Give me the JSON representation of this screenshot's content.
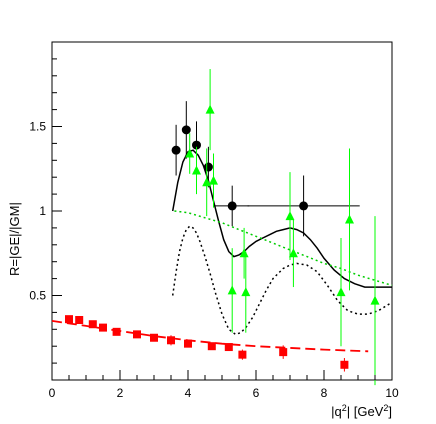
{
  "chart_data": {
    "type": "scatter",
    "xlabel": "|q²| [GeV²]",
    "ylabel": "R=|GE|/|GM|",
    "xlim": [
      0,
      10
    ],
    "ylim": [
      0,
      2
    ],
    "xticks": [
      0,
      2,
      4,
      6,
      8,
      10
    ],
    "yticks": [
      0.5,
      1,
      1.5
    ],
    "grid": false,
    "series": [
      {
        "marker": "square",
        "color": "#ff0000",
        "x": [
          0.5,
          0.8,
          1.2,
          1.5,
          1.9,
          2.5,
          3.0,
          3.5,
          4.0,
          4.7,
          5.2,
          5.6,
          6.8,
          8.6
        ],
        "y": [
          0.36,
          0.355,
          0.33,
          0.31,
          0.285,
          0.27,
          0.25,
          0.235,
          0.215,
          0.2,
          0.195,
          0.15,
          0.165,
          0.09
        ],
        "yerr": [
          0.02,
          0.02,
          0.02,
          0.02,
          0.02,
          0.02,
          0.02,
          0.03,
          0.02,
          0.02,
          0.02,
          0.03,
          0.04,
          0.04
        ]
      },
      {
        "marker": "circle",
        "color": "#000000",
        "x": [
          3.65,
          3.95,
          4.25,
          4.6,
          5.3,
          7.4
        ],
        "y": [
          1.36,
          1.48,
          1.39,
          1.26,
          1.03,
          1.03
        ],
        "yerr": [
          0.15,
          0.17,
          0.14,
          0.12,
          0.12,
          0.18
        ],
        "xerr": [
          0,
          0,
          0,
          0,
          0.5,
          1.65
        ]
      },
      {
        "marker": "triangle",
        "color": "#00ff00",
        "x": [
          4.05,
          4.25,
          4.55,
          4.65,
          4.75,
          5.3,
          5.65,
          5.7,
          7.0,
          7.1,
          8.5,
          8.75,
          9.5
        ],
        "y": [
          1.34,
          1.24,
          1.17,
          1.6,
          1.18,
          0.53,
          0.75,
          0.52,
          0.97,
          0.75,
          0.52,
          0.95,
          0.47
        ],
        "yerr": [
          0.12,
          0.14,
          0.2,
          0.24,
          0.16,
          0.25,
          0.15,
          0.24,
          0.26,
          0.2,
          0.32,
          0.42,
          0.5
        ]
      }
    ],
    "curves": [
      {
        "style": "solid",
        "color": "#000000",
        "x": [
          3.55,
          3.7,
          3.85,
          4.0,
          4.15,
          4.3,
          4.45,
          4.6,
          4.75,
          4.9,
          5.05,
          5.2,
          5.35,
          5.5,
          5.65,
          5.8,
          6.0,
          6.2,
          6.4,
          6.6,
          6.8,
          7.0,
          7.2,
          7.4,
          7.6,
          7.8,
          8.0,
          8.3,
          8.6,
          8.9,
          9.2,
          9.5,
          10.0
        ],
        "y": [
          1.0,
          1.17,
          1.29,
          1.35,
          1.36,
          1.33,
          1.27,
          1.18,
          1.06,
          0.94,
          0.83,
          0.76,
          0.73,
          0.74,
          0.76,
          0.79,
          0.82,
          0.84,
          0.86,
          0.88,
          0.89,
          0.9,
          0.89,
          0.87,
          0.83,
          0.78,
          0.72,
          0.65,
          0.6,
          0.57,
          0.55,
          0.55,
          0.55
        ]
      },
      {
        "style": "dotted",
        "color": "#000000",
        "x": [
          3.55,
          3.65,
          3.75,
          3.85,
          3.95,
          4.05,
          4.15,
          4.25,
          4.35,
          4.5,
          4.65,
          4.8,
          5.0,
          5.2,
          5.4,
          5.55,
          5.7,
          5.9,
          6.1,
          6.3,
          6.5,
          6.8,
          7.0,
          7.2,
          7.5,
          7.8,
          8.1,
          8.4,
          8.7,
          9.0,
          9.3,
          9.6,
          10.0
        ],
        "y": [
          0.5,
          0.64,
          0.76,
          0.84,
          0.89,
          0.91,
          0.9,
          0.87,
          0.82,
          0.73,
          0.63,
          0.52,
          0.39,
          0.3,
          0.27,
          0.28,
          0.31,
          0.37,
          0.45,
          0.53,
          0.6,
          0.66,
          0.68,
          0.69,
          0.68,
          0.64,
          0.56,
          0.47,
          0.41,
          0.39,
          0.39,
          0.41,
          0.46
        ]
      },
      {
        "style": "dotted",
        "color": "#00cc00",
        "x": [
          3.6,
          4.0,
          4.5,
          5.0,
          5.5,
          6.0,
          6.5,
          7.0,
          7.5,
          8.0,
          8.5,
          9.0,
          9.5,
          10.0
        ],
        "y": [
          1.0,
          0.99,
          0.96,
          0.93,
          0.89,
          0.85,
          0.81,
          0.77,
          0.73,
          0.69,
          0.66,
          0.62,
          0.59,
          0.56
        ]
      },
      {
        "style": "dashed",
        "color": "#ff0000",
        "x": [
          0.0,
          1.0,
          2.0,
          3.0,
          4.0,
          5.0,
          6.0,
          7.0,
          8.0,
          9.3
        ],
        "y": [
          0.35,
          0.32,
          0.29,
          0.26,
          0.235,
          0.215,
          0.2,
          0.19,
          0.18,
          0.17
        ]
      }
    ]
  }
}
